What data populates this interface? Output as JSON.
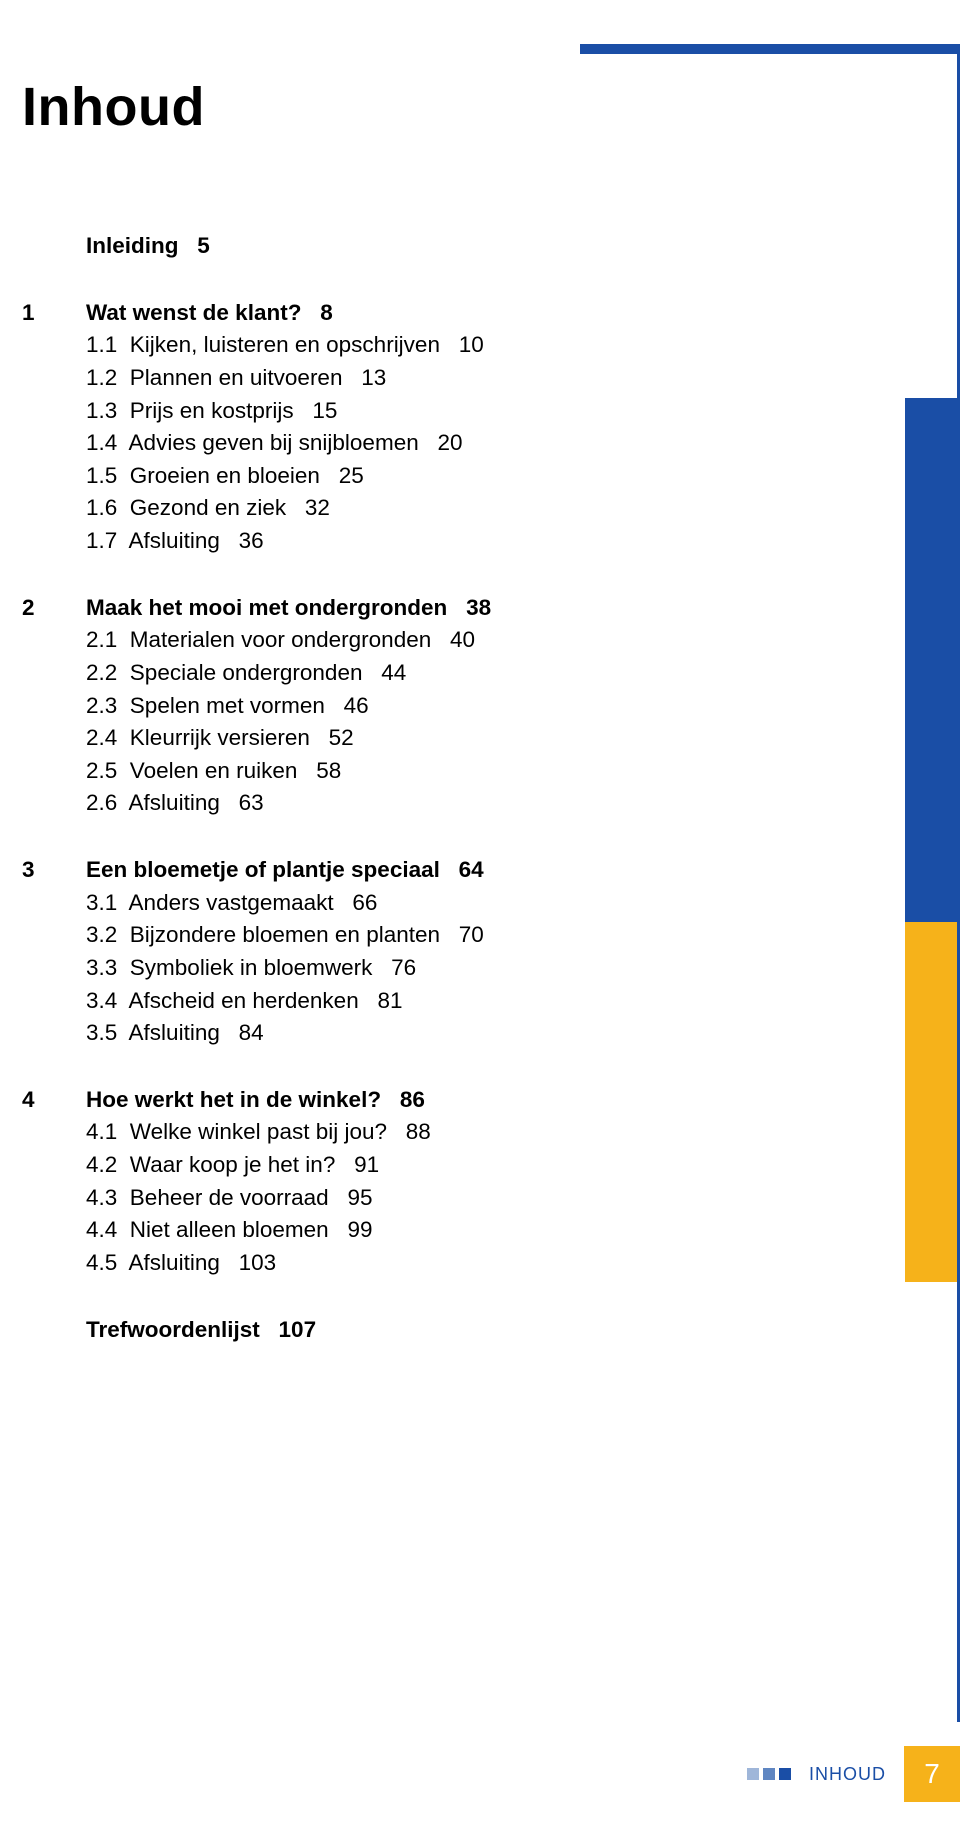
{
  "colors": {
    "blue": "#1a4ea6",
    "orange": "#f6b21a",
    "white": "#ffffff",
    "sq_light": "#9fb6d9",
    "sq_mid": "#5f86c2"
  },
  "title": "Inhoud",
  "intro": {
    "label": "Inleiding",
    "page": "5"
  },
  "chapters": [
    {
      "num": "1",
      "title": "Wat wenst de klant?",
      "page": "8",
      "items": [
        {
          "num": "1.1",
          "label": "Kijken, luisteren en opschrijven",
          "page": "10"
        },
        {
          "num": "1.2",
          "label": "Plannen en uitvoeren",
          "page": "13"
        },
        {
          "num": "1.3",
          "label": "Prijs en kostprijs",
          "page": "15"
        },
        {
          "num": "1.4",
          "label": "Advies geven bij snijbloemen",
          "page": "20"
        },
        {
          "num": "1.5",
          "label": "Groeien en bloeien",
          "page": "25"
        },
        {
          "num": "1.6",
          "label": "Gezond en ziek",
          "page": "32"
        },
        {
          "num": "1.7",
          "label": "Afsluiting",
          "page": "36"
        }
      ]
    },
    {
      "num": "2",
      "title": "Maak het mooi met ondergronden",
      "page": "38",
      "items": [
        {
          "num": "2.1",
          "label": "Materialen voor ondergronden",
          "page": "40"
        },
        {
          "num": "2.2",
          "label": "Speciale ondergronden",
          "page": "44"
        },
        {
          "num": "2.3",
          "label": "Spelen met vormen",
          "page": "46"
        },
        {
          "num": "2.4",
          "label": "Kleurrijk versieren",
          "page": "52"
        },
        {
          "num": "2.5",
          "label": "Voelen en ruiken",
          "page": "58"
        },
        {
          "num": "2.6",
          "label": "Afsluiting",
          "page": "63"
        }
      ]
    },
    {
      "num": "3",
      "title": "Een bloemetje of plantje speciaal",
      "page": "64",
      "items": [
        {
          "num": "3.1",
          "label": "Anders vastgemaakt",
          "page": "66"
        },
        {
          "num": "3.2",
          "label": "Bijzondere bloemen en planten",
          "page": "70"
        },
        {
          "num": "3.3",
          "label": "Symboliek in bloemwerk",
          "page": "76"
        },
        {
          "num": "3.4",
          "label": "Afscheid en herdenken",
          "page": "81"
        },
        {
          "num": "3.5",
          "label": "Afsluiting",
          "page": "84"
        }
      ]
    },
    {
      "num": "4",
      "title": "Hoe werkt het in de winkel?",
      "page": "86",
      "items": [
        {
          "num": "4.1",
          "label": "Welke winkel past bij jou?",
          "page": "88"
        },
        {
          "num": "4.2",
          "label": "Waar koop je het in?",
          "page": "91"
        },
        {
          "num": "4.3",
          "label": "Beheer de voorraad",
          "page": "95"
        },
        {
          "num": "4.4",
          "label": "Niet alleen bloemen",
          "page": "99"
        },
        {
          "num": "4.5",
          "label": "Afsluiting",
          "page": "103"
        }
      ]
    }
  ],
  "trailer": {
    "label": "Trefwoordenlijst",
    "page": "107"
  },
  "footer": {
    "label": "INHOUD",
    "page_number": "7"
  }
}
